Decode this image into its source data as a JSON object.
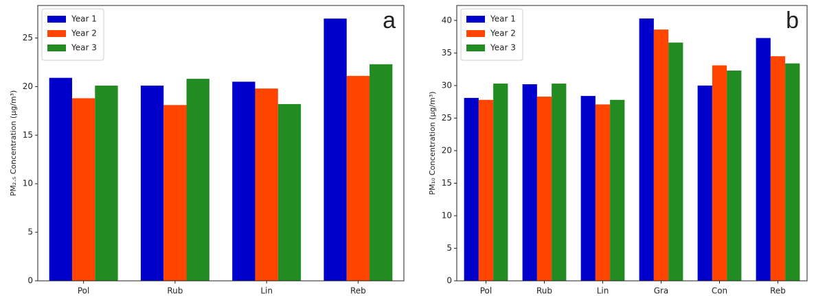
{
  "chart_data": [
    {
      "type": "bar",
      "annotation": "a",
      "y_label": "PM₂.₅ Concentration (µg/m³)",
      "categories": [
        "Pol",
        "Rub",
        "Lin",
        "Reb"
      ],
      "series": [
        {
          "name": "Year 1",
          "color": "#0000cd",
          "values": [
            20.9,
            20.1,
            20.5,
            27.0
          ]
        },
        {
          "name": "Year 2",
          "color": "#ff4500",
          "values": [
            18.8,
            18.1,
            19.8,
            21.1
          ]
        },
        {
          "name": "Year 3",
          "color": "#228b22",
          "values": [
            20.1,
            20.8,
            18.2,
            22.3
          ]
        }
      ],
      "ylim": [
        0,
        28.35
      ],
      "yticks": [
        0,
        5,
        10,
        15,
        20,
        25
      ],
      "legend": "upper left"
    },
    {
      "type": "bar",
      "annotation": "b",
      "y_label": "PM₁₀ Concentration (µg/m³)",
      "categories": [
        "Pol",
        "Rub",
        "Lin",
        "Gra",
        "Con",
        "Reb"
      ],
      "series": [
        {
          "name": "Year 1",
          "color": "#0000cd",
          "values": [
            28.1,
            30.2,
            28.4,
            40.3,
            30.0,
            37.3
          ]
        },
        {
          "name": "Year 2",
          "color": "#ff4500",
          "values": [
            27.8,
            28.3,
            27.1,
            38.6,
            33.1,
            34.5
          ]
        },
        {
          "name": "Year 3",
          "color": "#228b22",
          "values": [
            30.3,
            30.3,
            27.8,
            36.6,
            32.3,
            33.4
          ]
        }
      ],
      "ylim": [
        0,
        42.3
      ],
      "yticks": [
        0,
        5,
        10,
        15,
        20,
        25,
        30,
        35,
        40
      ],
      "legend": "upper left"
    }
  ]
}
